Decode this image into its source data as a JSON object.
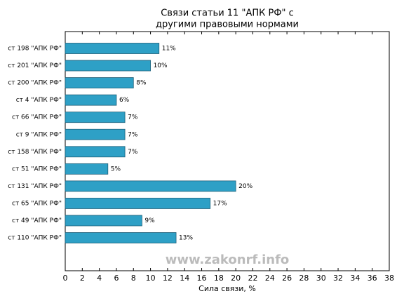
{
  "chart_data": {
    "type": "barh",
    "title": [
      "Связи статьи 11 \"АПК РФ\" с",
      "другими правовыми нормами"
    ],
    "xlabel": "Сила связи, %",
    "watermark": "www.zakonrf.info",
    "categories": [
      "ст 198 \"АПК РФ\"",
      "ст 201 \"АПК РФ\"",
      "ст 200 \"АПК РФ\"",
      "ст 4 \"АПК РФ\"",
      "ст 66 \"АПК РФ\"",
      "ст 9 \"АПК РФ\"",
      "ст 158 \"АПК РФ\"",
      "ст 51 \"АПК РФ\"",
      "ст 131 \"АПК РФ\"",
      "ст 65 \"АПК РФ\"",
      "ст 49 \"АПК РФ\"",
      "ст 110 \"АПК РФ\""
    ],
    "values": [
      11,
      10,
      8,
      6,
      7,
      7,
      7,
      5,
      20,
      17,
      9,
      13
    ],
    "value_labels": [
      "11%",
      "10%",
      "8%",
      "6%",
      "7%",
      "7%",
      "7%",
      "5%",
      "20%",
      "17%",
      "9%",
      "13%"
    ],
    "color": "#2ea0c6",
    "xlim": [
      0,
      38
    ],
    "xticks": [
      0,
      2,
      4,
      6,
      8,
      10,
      12,
      14,
      16,
      18,
      20,
      22,
      24,
      26,
      28,
      30,
      32,
      34,
      36,
      38
    ]
  }
}
